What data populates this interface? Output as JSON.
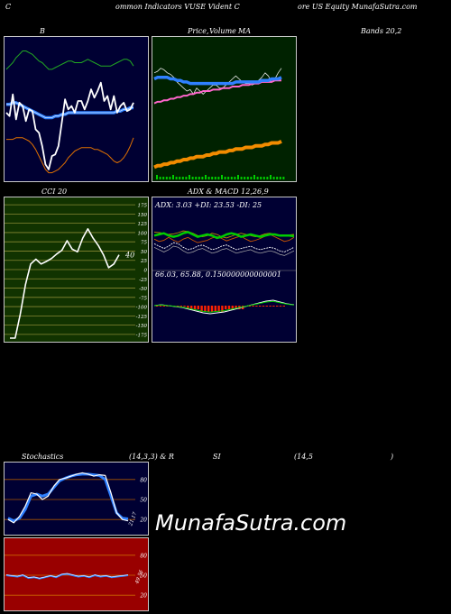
{
  "header": {
    "left": "C",
    "mid": "ommon  Indicators VUSE Vident C",
    "right": "ore  US Equity MunafaSutra.com"
  },
  "titles": {
    "b": "B",
    "price": "Price,",
    "volume": "Volume",
    "ma": "MA",
    "bands": "Bands 20,2",
    "cci": "CCI 20",
    "adx": "ADX  & MACD 12,26,9",
    "stoch_a": "Stochastics",
    "stoch_b": "(14,3,3) & R",
    "rsi_a": "SI",
    "rsi_b": "(14,5",
    "rsi_c": ")"
  },
  "adx_text": "ADX: 3.03 +DI: 23.53 -DI: 25",
  "macd_text": "66.03,  65.88,  0.150000000000001",
  "watermark": "MunafaSutra.com",
  "colors": {
    "navy": "#000033",
    "green_panel": "#002200",
    "cci_panel": "#113300",
    "rsi_panel": "#990000",
    "blue": "#2f80ff",
    "orange": "#f28c00",
    "green": "#00cc00"
  },
  "chart_data": [
    {
      "type": "line",
      "panel": "bollinger",
      "x": [
        1,
        2,
        3,
        4,
        5,
        6,
        7,
        8,
        9,
        10,
        11,
        12,
        13,
        14,
        15,
        16,
        17,
        18,
        19,
        20,
        21,
        22,
        23,
        24,
        25,
        26,
        27,
        28,
        29,
        30,
        31,
        32,
        33,
        34,
        35,
        36,
        37,
        38,
        39,
        40
      ],
      "series": [
        {
          "role": "upper",
          "values": [
            66,
            68,
            70,
            73,
            75,
            77,
            77,
            76,
            75,
            73,
            71,
            70,
            68,
            66,
            66,
            67,
            68,
            69,
            70,
            71,
            71,
            70,
            70,
            70,
            71,
            72,
            71,
            70,
            69,
            68,
            68,
            68,
            68,
            69,
            70,
            71,
            72,
            72,
            71,
            68
          ]
        },
        {
          "role": "middle",
          "values": [
            45,
            45,
            46,
            46,
            45,
            44,
            43,
            42,
            41,
            40,
            39,
            38,
            37,
            37,
            37,
            38,
            38,
            39,
            39,
            40,
            40,
            40,
            40,
            40,
            40,
            40,
            40,
            40,
            40,
            40,
            40,
            40,
            40,
            40,
            41,
            41,
            42,
            42,
            43,
            43
          ]
        },
        {
          "role": "lower",
          "values": [
            24,
            24,
            24,
            25,
            25,
            25,
            24,
            23,
            21,
            18,
            14,
            10,
            6,
            4,
            4,
            5,
            6,
            8,
            10,
            13,
            15,
            17,
            18,
            19,
            19,
            19,
            19,
            18,
            18,
            17,
            16,
            15,
            13,
            11,
            10,
            11,
            13,
            16,
            20,
            25
          ]
        },
        {
          "role": "price",
          "values": [
            40,
            38,
            51,
            36,
            46,
            44,
            35,
            42,
            41,
            30,
            28,
            20,
            9,
            6,
            14,
            15,
            20,
            34,
            48,
            42,
            44,
            40,
            47,
            47,
            42,
            47,
            54,
            49,
            53,
            58,
            47,
            50,
            42,
            50,
            40,
            44,
            46,
            41,
            42,
            46
          ]
        }
      ]
    },
    {
      "type": "line",
      "panel": "price_ma",
      "series": [
        {
          "role": "price",
          "values": [
            50,
            51,
            53,
            52,
            50,
            49,
            47,
            44,
            42,
            40,
            38,
            39,
            36,
            40,
            38,
            36,
            38,
            40,
            42,
            42,
            40,
            40,
            42,
            44,
            46,
            48,
            46,
            44,
            43,
            43,
            42,
            43,
            45,
            47,
            50,
            48,
            44,
            46,
            50,
            53
          ]
        },
        {
          "role": "ma_blue",
          "values": [
            46,
            47,
            47,
            47,
            47,
            46,
            46,
            45,
            45,
            44,
            44,
            43,
            43,
            43,
            43,
            43,
            43,
            43,
            43,
            43,
            43,
            43,
            43,
            43,
            43,
            44,
            44,
            44,
            44,
            44,
            44,
            44,
            44,
            45,
            45,
            45,
            46,
            46,
            46,
            47
          ]
        },
        {
          "role": "ma_pink",
          "values": [
            30,
            31,
            31,
            32,
            32,
            33,
            33,
            34,
            34,
            35,
            35,
            36,
            36,
            37,
            37,
            38,
            38,
            38,
            39,
            39,
            39,
            40,
            40,
            40,
            41,
            41,
            41,
            42,
            42,
            42,
            43,
            43,
            43,
            44,
            44,
            44,
            44,
            45,
            45,
            45
          ]
        },
        {
          "role": "ma_orange",
          "values": [
            -12,
            -11,
            -11,
            -10,
            -10,
            -9,
            -9,
            -8,
            -8,
            -7,
            -7,
            -6,
            -6,
            -5,
            -5,
            -5,
            -4,
            -4,
            -3,
            -3,
            -2,
            -2,
            -2,
            -1,
            -1,
            0,
            0,
            0,
            1,
            1,
            1,
            2,
            2,
            2,
            3,
            3,
            4,
            4,
            4,
            5
          ]
        }
      ]
    },
    {
      "type": "line",
      "panel": "cci",
      "title": "CCI 20",
      "y_ticks": [
        175,
        150,
        125,
        100,
        75,
        50,
        25,
        0,
        -25,
        -50,
        -75,
        -100,
        -125,
        -150,
        -175
      ],
      "ylim": [
        -185,
        185
      ],
      "series": [
        {
          "role": "cci",
          "values": [
            -185,
            -185,
            -120,
            -40,
            15,
            28,
            15,
            22,
            30,
            42,
            52,
            78,
            55,
            48,
            85,
            110,
            85,
            65,
            40,
            5,
            15,
            40
          ]
        }
      ],
      "last_label": "40"
    },
    {
      "type": "line",
      "panel": "adx_macd",
      "adx": {
        "adx": 3.03,
        "plus_di": 23.53,
        "minus_di": 25
      },
      "macd": {
        "macd": 66.03,
        "signal": 65.88,
        "hist": 0.150000000000001
      }
    },
    {
      "type": "line",
      "panel": "stochastics",
      "y_ticks": [
        80,
        50,
        20
      ],
      "ylim": [
        0,
        100
      ],
      "series": [
        {
          "role": "k",
          "values": [
            20,
            15,
            25,
            40,
            60,
            58,
            50,
            55,
            70,
            80,
            82,
            85,
            88,
            90,
            88,
            85,
            87,
            86,
            60,
            30,
            20,
            18
          ]
        },
        {
          "role": "d",
          "values": [
            22,
            18,
            22,
            35,
            55,
            58,
            55,
            58,
            68,
            78,
            82,
            85,
            87,
            88,
            88,
            87,
            86,
            80,
            55,
            30,
            22,
            21
          ]
        }
      ],
      "last_label": "21.17"
    },
    {
      "type": "line",
      "panel": "rsi",
      "y_ticks": [
        80,
        50,
        20
      ],
      "ylim": [
        0,
        100
      ],
      "series": [
        {
          "role": "rsi",
          "values": [
            50,
            49,
            48,
            50,
            46,
            47,
            45,
            47,
            49,
            47,
            51,
            52,
            50,
            48,
            49,
            47,
            50,
            48,
            49,
            47,
            48,
            49,
            50
          ]
        }
      ],
      "last_label": "49.56"
    }
  ]
}
